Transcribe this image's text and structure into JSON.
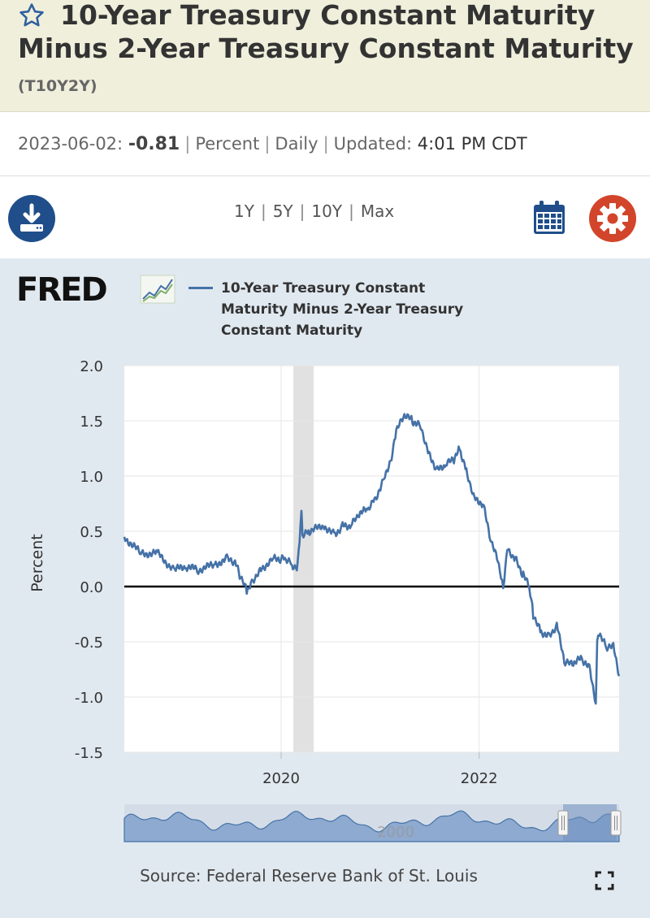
{
  "header": {
    "title": "10-Year Treasury Constant Maturity Minus 2-Year Treasury Constant Maturity",
    "code": "(T10Y2Y)"
  },
  "meta": {
    "date": "2023-06-02:",
    "value": "-0.81",
    "units": "Percent",
    "frequency": "Daily",
    "updated_label": "Updated:",
    "updated_time": "4:01 PM CDT"
  },
  "toolbar": {
    "ranges": [
      "1Y",
      "5Y",
      "10Y",
      "Max"
    ]
  },
  "logo": {
    "text": "FRED"
  },
  "source": "Source: Federal Reserve Bank of St. Louis",
  "colors": {
    "series": "#4572a7",
    "recession": "#e1e1e1",
    "title_bar": "#efefdc",
    "panel": "#e1e9f0",
    "download_button": "#1f4e8a",
    "settings_button": "#d2452b"
  },
  "icons": {
    "favorite": "star-icon",
    "download": "download-icon",
    "calendar": "calendar-icon",
    "settings": "gear-icon",
    "fullscreen": "fullscreen-icon"
  },
  "chart_data": {
    "type": "line",
    "title": "",
    "ylabel": "Percent",
    "xlabel": "",
    "ylim": [
      -1.5,
      2.0
    ],
    "yticks": [
      -1.5,
      -1.0,
      -0.5,
      0.0,
      0.5,
      1.0,
      1.5,
      2.0
    ],
    "ytick_labels": [
      "-1.5",
      "-1.0",
      "-0.5",
      "0.0",
      "0.5",
      "1.0",
      "1.5",
      "2.0"
    ],
    "xlim": [
      "2018-06-01",
      "2023-06-02"
    ],
    "xticks": [
      "2020-01-01",
      "2022-01-01"
    ],
    "xtick_labels": [
      "2020",
      "2022"
    ],
    "grid": true,
    "zero_line": true,
    "recession_shading": [
      {
        "start": "2020-02-15",
        "end": "2020-04-30"
      }
    ],
    "series": [
      {
        "name": "10-Year Treasury Constant Maturity Minus 2-Year Treasury Constant Maturity",
        "x": [
          "2018-06-01",
          "2018-08-01",
          "2018-10-01",
          "2018-12-01",
          "2019-01-15",
          "2019-03-01",
          "2019-05-01",
          "2019-06-15",
          "2019-07-15",
          "2019-08-01",
          "2019-08-27",
          "2019-09-15",
          "2019-10-15",
          "2019-12-01",
          "2020-01-01",
          "2020-01-15",
          "2020-02-10",
          "2020-02-28",
          "2020-03-09",
          "2020-03-16",
          "2020-03-20",
          "2020-04-15",
          "2020-06-08",
          "2020-07-15",
          "2020-08-15",
          "2020-09-15",
          "2020-10-15",
          "2020-11-15",
          "2020-12-15",
          "2021-01-15",
          "2021-02-15",
          "2021-03-01",
          "2021-03-31",
          "2021-04-30",
          "2021-05-31",
          "2021-06-30",
          "2021-07-31",
          "2021-08-31",
          "2021-09-30",
          "2021-10-21",
          "2021-11-15",
          "2021-12-15",
          "2022-01-15",
          "2022-02-15",
          "2022-03-15",
          "2022-03-31",
          "2022-04-15",
          "2022-05-15",
          "2022-06-13",
          "2022-07-05",
          "2022-07-20",
          "2022-08-15",
          "2022-09-15",
          "2022-10-15",
          "2022-11-15",
          "2022-12-15",
          "2023-01-15",
          "2023-02-15",
          "2023-03-08",
          "2023-03-13",
          "2023-03-24",
          "2023-04-15",
          "2023-05-15",
          "2023-06-02"
        ],
        "y": [
          0.45,
          0.3,
          0.3,
          0.15,
          0.18,
          0.15,
          0.2,
          0.25,
          0.22,
          0.1,
          -0.04,
          0.05,
          0.15,
          0.25,
          0.25,
          0.25,
          0.2,
          0.17,
          0.4,
          0.65,
          0.45,
          0.5,
          0.55,
          0.47,
          0.55,
          0.55,
          0.65,
          0.7,
          0.8,
          0.98,
          1.2,
          1.4,
          1.55,
          1.5,
          1.45,
          1.2,
          1.05,
          1.1,
          1.15,
          1.25,
          1.05,
          0.8,
          0.75,
          0.4,
          0.2,
          0.0,
          0.35,
          0.25,
          0.1,
          0.0,
          -0.25,
          -0.4,
          -0.45,
          -0.35,
          -0.7,
          -0.7,
          -0.65,
          -0.75,
          -1.05,
          -0.5,
          -0.45,
          -0.55,
          -0.55,
          -0.81
        ]
      }
    ]
  }
}
